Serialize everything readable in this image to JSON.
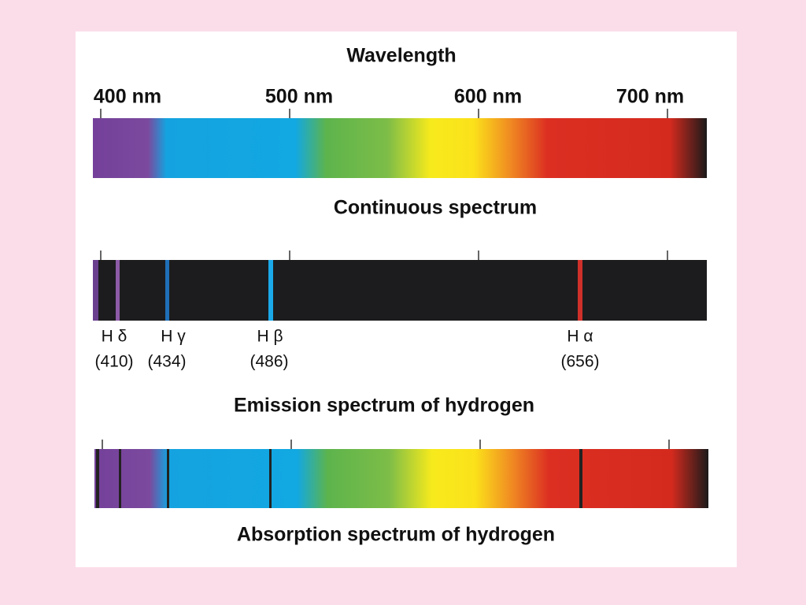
{
  "title": "Wavelength",
  "axis_labels": [
    "400 nm",
    "500 nm",
    "600 nm",
    "700 nm"
  ],
  "continuous": {
    "caption": "Continuous spectrum"
  },
  "emission": {
    "lines": [
      {
        "symbol": "H δ",
        "wavelength": "(410)"
      },
      {
        "symbol": "H γ",
        "wavelength": "(434)"
      },
      {
        "symbol": "H β",
        "wavelength": "(486)"
      },
      {
        "symbol": "H α",
        "wavelength": "(656)"
      }
    ],
    "caption": "Emission spectrum of hydrogen"
  },
  "absorption": {
    "caption": "Absorption spectrum of hydrogen"
  }
}
